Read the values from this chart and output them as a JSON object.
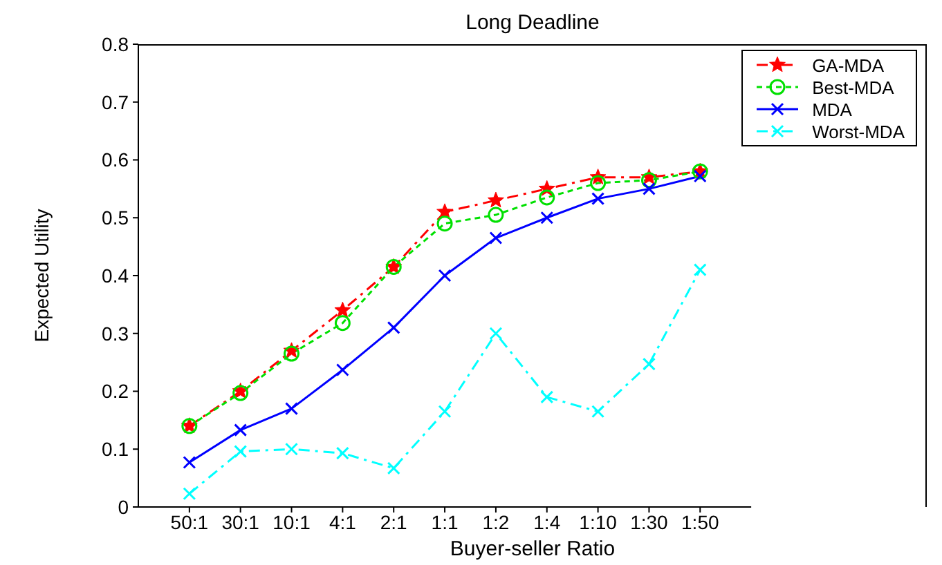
{
  "chart_data": {
    "type": "line",
    "title": "Long Deadline",
    "xlabel": "Buyer-seller Ratio",
    "ylabel": "Expected Utility",
    "categories": [
      "50:1",
      "30:1",
      "10:1",
      "4:1",
      "2:1",
      "1:1",
      "1:2",
      "1:4",
      "1:10",
      "1:30",
      "1:50"
    ],
    "ylim": [
      0,
      0.8
    ],
    "yticks": [
      0,
      0.1,
      0.2,
      0.3,
      0.4,
      0.5,
      0.6,
      0.7,
      0.8
    ],
    "grid": false,
    "legend": "top right",
    "series": [
      {
        "name": "GA-MDA",
        "color": "#ff0000",
        "marker": "star",
        "line_style": "dashed",
        "values": [
          0.14,
          0.2,
          0.27,
          0.34,
          0.415,
          0.51,
          0.53,
          0.55,
          0.57,
          0.57,
          0.58
        ]
      },
      {
        "name": "Best-MDA",
        "color": "#00e000",
        "marker": "circle",
        "line_style": "dotted",
        "values": [
          0.14,
          0.197,
          0.265,
          0.318,
          0.415,
          0.49,
          0.505,
          0.535,
          0.56,
          0.565,
          0.58
        ]
      },
      {
        "name": "MDA",
        "color": "#0000ff",
        "marker": "cross",
        "line_style": "solid",
        "values": [
          0.077,
          0.133,
          0.17,
          0.237,
          0.31,
          0.4,
          0.465,
          0.5,
          0.533,
          0.55,
          0.572
        ]
      },
      {
        "name": "Worst-MDA",
        "color": "#00ffff",
        "marker": "cross",
        "line_style": "dashed",
        "values": [
          0.023,
          0.096,
          0.1,
          0.093,
          0.067,
          0.165,
          0.3,
          0.19,
          0.165,
          0.247,
          0.41
        ]
      }
    ]
  }
}
